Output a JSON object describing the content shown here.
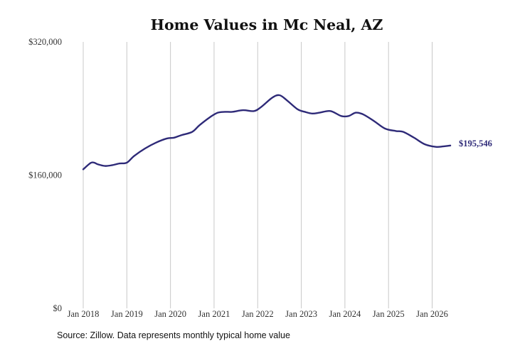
{
  "chart_data": {
    "type": "line",
    "title": "Home Values in Mc Neal, AZ",
    "xlabel": "",
    "ylabel": "",
    "ylim": [
      0,
      320000
    ],
    "y_ticks": [
      {
        "value": 0,
        "label": "$0"
      },
      {
        "value": 160000,
        "label": "$160,000"
      },
      {
        "value": 320000,
        "label": "$320,000"
      }
    ],
    "x_ticks": [
      {
        "value": "2018-01",
        "label": "Jan 2018"
      },
      {
        "value": "2019-01",
        "label": "Jan 2019"
      },
      {
        "value": "2020-01",
        "label": "Jan 2020"
      },
      {
        "value": "2021-01",
        "label": "Jan 2021"
      },
      {
        "value": "2022-01",
        "label": "Jan 2022"
      },
      {
        "value": "2023-01",
        "label": "Jan 2023"
      },
      {
        "value": "2024-01",
        "label": "Jan 2024"
      },
      {
        "value": "2025-01",
        "label": "Jan 2025"
      },
      {
        "value": "2026-01",
        "label": "Jan 2026"
      }
    ],
    "vertical_grid": true,
    "line_color": "#2e2a78",
    "end_label": "$195,546",
    "series": [
      {
        "x": [
          "2018-01",
          "2018-03",
          "2018-04",
          "2018-05",
          "2018-07",
          "2018-09",
          "2018-11",
          "2019-01",
          "2019-03",
          "2019-06",
          "2019-09",
          "2019-12",
          "2020-02",
          "2020-04",
          "2020-07",
          "2020-09",
          "2020-12",
          "2021-02",
          "2021-04",
          "2021-06",
          "2021-09",
          "2021-12",
          "2022-02",
          "2022-05",
          "2022-07",
          "2022-09",
          "2022-12",
          "2023-02",
          "2023-04",
          "2023-06",
          "2023-09",
          "2023-12",
          "2024-02",
          "2024-04",
          "2024-06",
          "2024-09",
          "2024-12",
          "2025-03",
          "2025-05",
          "2025-08",
          "2025-11",
          "2026-02",
          "2026-04",
          "2026-06"
        ],
        "values": [
          167000,
          174500,
          175000,
          173000,
          171000,
          172000,
          174000,
          175000,
          183000,
          192000,
          199000,
          204000,
          205000,
          208000,
          212000,
          220000,
          230000,
          235000,
          236000,
          236000,
          238000,
          237000,
          242000,
          253000,
          256000,
          250000,
          239000,
          236000,
          234000,
          235000,
          237000,
          231000,
          231000,
          235000,
          233000,
          225000,
          216000,
          213000,
          212000,
          205000,
          197000,
          194000,
          194500,
          195546
        ]
      }
    ]
  },
  "caption": "Source: Zillow. Data represents monthly typical home value"
}
